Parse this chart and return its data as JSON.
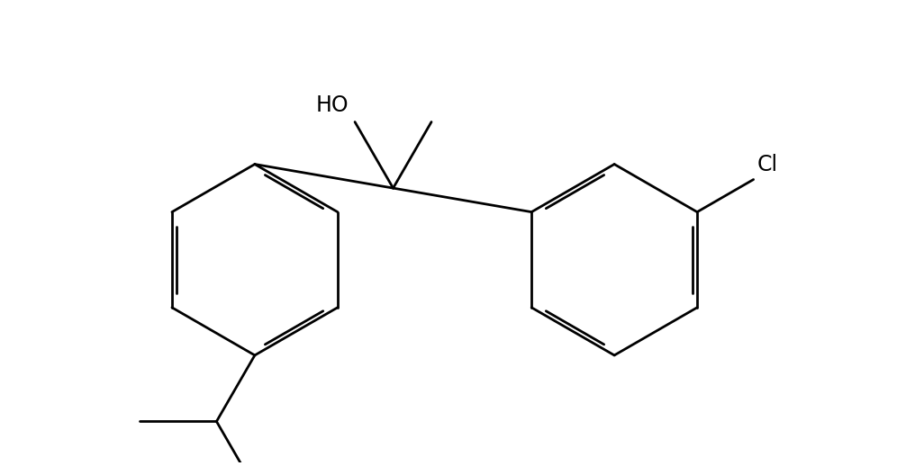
{
  "background_color": "#ffffff",
  "line_color": "#000000",
  "line_width": 2.0,
  "font_size": 17,
  "figsize": [
    10.16,
    5.18
  ],
  "dpi": 100,
  "xlim": [
    -5.2,
    5.8
  ],
  "ylim": [
    -3.2,
    2.8
  ]
}
